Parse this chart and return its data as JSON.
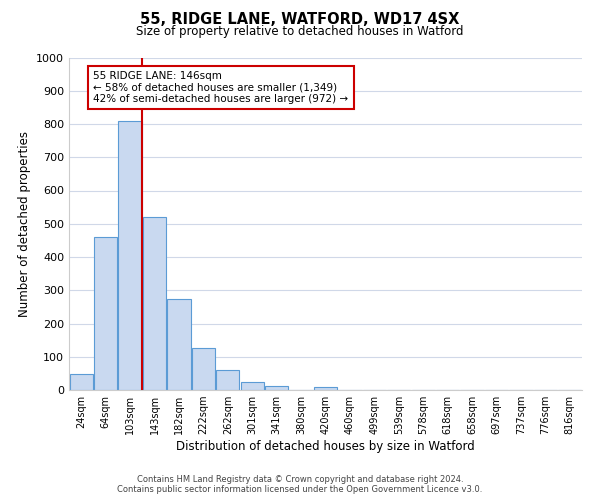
{
  "title": "55, RIDGE LANE, WATFORD, WD17 4SX",
  "subtitle": "Size of property relative to detached houses in Watford",
  "xlabel": "Distribution of detached houses by size in Watford",
  "ylabel": "Number of detached properties",
  "bin_labels": [
    "24sqm",
    "64sqm",
    "103sqm",
    "143sqm",
    "182sqm",
    "222sqm",
    "262sqm",
    "301sqm",
    "341sqm",
    "380sqm",
    "420sqm",
    "460sqm",
    "499sqm",
    "539sqm",
    "578sqm",
    "618sqm",
    "658sqm",
    "697sqm",
    "737sqm",
    "776sqm",
    "816sqm"
  ],
  "bar_heights": [
    47,
    460,
    810,
    520,
    275,
    125,
    60,
    25,
    12,
    0,
    8,
    0,
    0,
    0,
    0,
    0,
    0,
    0,
    0,
    0,
    0
  ],
  "bar_color": "#c9d9f0",
  "bar_edgecolor": "#5b9bd5",
  "vline_label_idx": 3,
  "vline_color": "#cc0000",
  "annotation_line1": "55 RIDGE LANE: 146sqm",
  "annotation_line2": "← 58% of detached houses are smaller (1,349)",
  "annotation_line3": "42% of semi-detached houses are larger (972) →",
  "annotation_box_edgecolor": "#cc0000",
  "ylim": [
    0,
    1000
  ],
  "yticks": [
    0,
    100,
    200,
    300,
    400,
    500,
    600,
    700,
    800,
    900,
    1000
  ],
  "footer_line1": "Contains HM Land Registry data © Crown copyright and database right 2024.",
  "footer_line2": "Contains public sector information licensed under the Open Government Licence v3.0.",
  "background_color": "#ffffff",
  "grid_color": "#d0d8e8"
}
